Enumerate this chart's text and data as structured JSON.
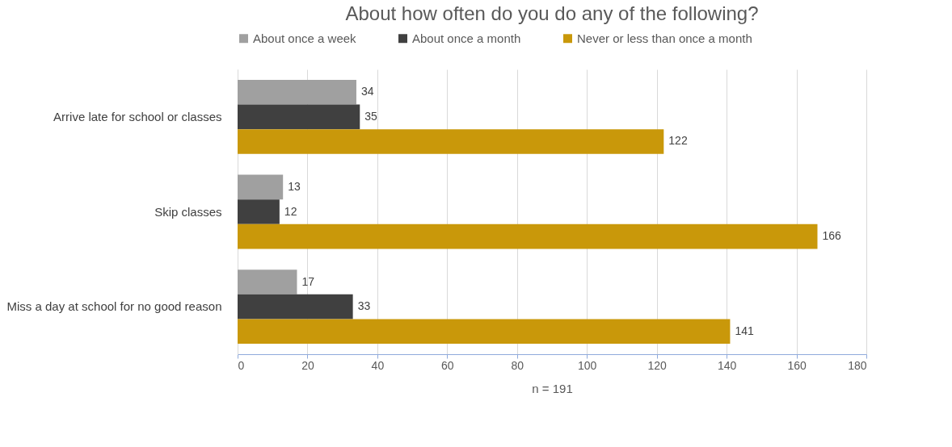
{
  "chart_data": {
    "type": "bar",
    "orientation": "horizontal",
    "title": "About how often do you do any of the following?",
    "xlabel": "n = 191",
    "categories": [
      "Arrive late for school or classes",
      "Skip classes",
      "Miss a day at school for no good reason"
    ],
    "series": [
      {
        "name": "About once a week",
        "color": "#a0a0a0",
        "values": [
          34,
          13,
          17
        ]
      },
      {
        "name": "About once a month",
        "color": "#404040",
        "values": [
          35,
          12,
          33
        ]
      },
      {
        "name": "Never or less than once a month",
        "color": "#c9980a",
        "values": [
          122,
          166,
          141
        ]
      }
    ],
    "xlim": [
      0,
      180
    ],
    "xticks": [
      0,
      20,
      40,
      60,
      80,
      100,
      120,
      140,
      160,
      180
    ],
    "grid": "x",
    "legend": "top",
    "data_labels": true
  }
}
